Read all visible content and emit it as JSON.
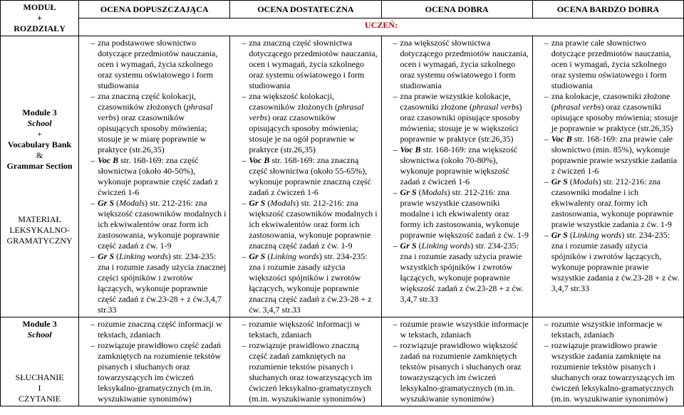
{
  "header": {
    "c0": "MODUŁ\n+\nROZDZIAŁY",
    "c1": "OCENA DOPUSZCZAJĄCA",
    "c2": "OCENA DOSTATECZNA",
    "c3": "OCENA DOBRA",
    "c4": "OCENA BARDZO DOBRA",
    "pupil": "UCZEŃ:"
  },
  "row1": {
    "label_html": "<b>Module 3</b><br><b><i>School</i></b><br>+<br><b>Vocabulary Bank</b><br>&amp;<br><b>Grammar Section</b><br><br><br><br><br>MATERIAŁ LEKSYKALNO-GRAMATYCZNY",
    "c1": [
      "zna podstawowe słownictwo dotyczące przedmiotów nauczania, ocen i wymagań, życia szkolnego oraz systemu oświatowego i form studiowania",
      "zna znaczną część kolokacji, czasowników złożonych (<i>phrasal verbs</i>) oraz czasowników opisujących sposoby mówienia; stosuje je w miarę poprawnie w praktyce (str.26,35)",
      "<b><i>Voc B</i></b> str. 168-169: zna część słownictwa (około 40-50%), wykonuje poprawnie część zadań z ćwiczeń 1-6",
      "<b><i>Gr S</i></b> (<i>Modals</i>) str. 212-216: zna większość czasowników modalnych i ich ekwiwalentów oraz form ich zastosowania, wykonuje poprawnie część zadań z ćw. 1-9",
      "<b><i>Gr S</i></b> (<i>Linking words</i>) str. 234-235: zna i rozumie zasady użycia znacznej części spójników i zwrotów łączących, wykonuje poprawnie część zadań z ćw.23-28 + z ćw.3,4,7 str.33"
    ],
    "c2": [
      "zna znaczną część słownictwa dotyczącego przedmiotów nauczania, ocen i wymagań, życia szkolnego oraz systemu oświatowego i form studiowania",
      "zna większość kolokacji, czasowników złożonych (<i>phrasal verbs</i>) oraz czasowników opisujących sposoby mówienia; stosuje je na ogół poprawnie w praktyce (str.26,35)",
      "<b><i>Voc B</i></b> str. 168-169: zna znaczną część słownictwa (około 55-65%), wykonuje poprawnie znaczną część zadań z ćwiczeń 1-6",
      "<b><i>Gr S</i></b> (<i>Modals</i>) str. 212-216: zna większość czasowników modalnych i ich ekwiwalentów oraz form ich zastosowania, wykonuje poprawnie znaczną część zadań z ćw. 1-9",
      "<b><i>Gr S</i></b> (<i>Linking words</i>) str. 234-235: zna i rozumie zasady użycia większości spójników i zwrotów łączących, wykonuje poprawnie znaczną część zadań z ćw.23-28 + z ćw. 3,4,7 str.33"
    ],
    "c3": [
      "zna większość słownictwa dotyczącego przedmiotów nauczania, ocen i wymagań, życia szkolnego oraz systemu oświatowego i form studiowania",
      "zna prawie wszystkie kolokacje, czasowniki złożone (<i>phrasal verbs</i>) oraz czasowniki opisujące sposoby mówienia; stosuje je w większości poprawnie w praktyce (str.26,35)",
      "<b><i>Voc B</i></b> str. 168-169: zna większość słownictwa (około 70-80%), wykonuje poprawnie większość zadań z ćwiczeń 1-6",
      "<b><i>Gr S</i></b> (<i>Modals</i>) str. 212-216: zna prawie wszystkie czasowniki modalne i ich ekwiwalenty oraz formy ich zastosowania, wykonuje poprawnie większość zadań z ćw. 1-9",
      "<b><i>Gr S</i></b> (<i>Linking words</i>) str. 234-235: zna i rozumie zasady użycia prawie wszystkich spójników i zwrotów łączących, wykonuje poprawnie większość zadań z ćw.23-28 + z ćw. 3,4,7 str.33"
    ],
    "c4": [
      "zna prawie całe słownictwo dotyczące przedmiotów nauczania, ocen i wymagań, życia szkolnego oraz systemu oświatowego i form studiowania",
      "zna kolokacje, czasowniki złożone (<i>phrasal verbs</i>) oraz czasowniki opisujące sposoby mówienia; stosuje je poprawnie w praktyce (str.26,35)",
      "<b><i>Voc B</i></b> str. 168-169: zna prawie całe słownictwo (min. 85%), wykonuje poprawnie prawie wszystkie zadania z ćwiczeń 1-6",
      "<b><i>Gr S</i></b> (<i>Modals</i>) str. 212-216: zna czasowniki modalne i ich ekwiwalenty oraz formy ich zastosowania, wykonuje poprawnie prawie wszystkie zadania z ćw. 1-9",
      "<b><i>Gr S</i></b> (<i>Linking words</i>) str. 234-235: zna i rozumie zasady użycia spójników i zwrotów łączących, wykonuje poprawnie prawie wszystkie zadania z ćw.23-28 + z ćw. 3,4,7 str.33"
    ]
  },
  "row2": {
    "label_html": "<b>Module 3</b><br><b><i>School</i></b><br><br><br><br>SŁUCHANIE<br>I<br>CZYTANIE",
    "c1": [
      "rozumie znaczną część informacji w tekstach, zdaniach",
      "rozwiązuje prawidłowo część zadań zamkniętych na rozumienie tekstów pisanych i słuchanych oraz towarzyszących im ćwiczeń leksykalno-gramatycznych (m.in. wyszukiwanie synonimów)"
    ],
    "c2": [
      "rozumie większość informacji w tekstach, zdaniach",
      "rozwiązuje prawidłowo znaczną część zadań zamkniętych na rozumienie tekstów pisanych i słuchanych oraz towarzyszących im ćwiczeń leksykalno-gramatycznych (m.in. wyszukiwanie synonimów)"
    ],
    "c3": [
      "rozumie prawie wszystkie informacje w tekstach, zdaniach",
      "rozwiązuje prawidłowo większość zadań na rozumienie zamkniętych tekstów pisanych i słuchanych oraz towarzyszących im ćwiczeń leksykalno-gramatycznych (m.in. wyszukiwanie synonimów)"
    ],
    "c4": [
      "rozumie wszystkie informacje w tekstach, zdaniach",
      "rozwiązuje prawidłowo prawie wszystkie zadania zamknięte na rozumienie tekstów pisanych i słuchanych oraz towarzyszących im ćwiczeń leksykalno-gramatycznych (m.in. wyszukiwanie synonimów)"
    ]
  }
}
